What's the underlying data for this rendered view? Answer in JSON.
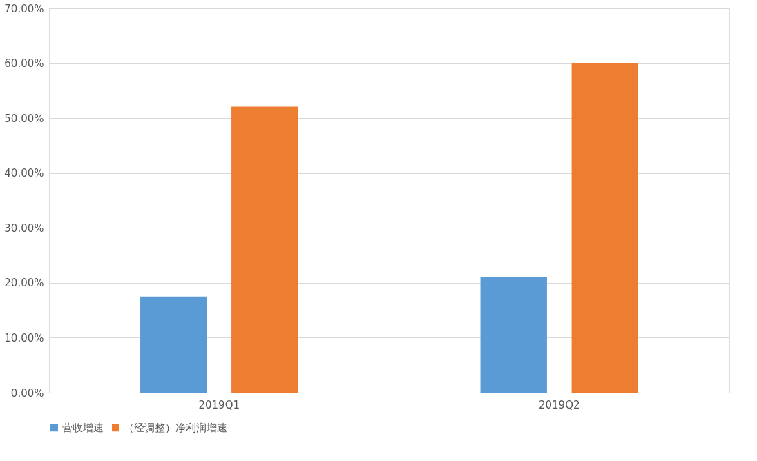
{
  "chart_data": {
    "type": "bar",
    "categories": [
      "2019Q1",
      "2019Q2"
    ],
    "series": [
      {
        "name": "营收增速",
        "color": "#5b9bd5",
        "values": [
          17.5,
          21.0
        ]
      },
      {
        "name": "（经调整）净利润增速",
        "color": "#ed7d31",
        "values": [
          52.1,
          60.0
        ]
      }
    ],
    "ylim": [
      0,
      70
    ],
    "yticks": [
      {
        "value": 0,
        "label": "0.00%"
      },
      {
        "value": 10,
        "label": "10.00%"
      },
      {
        "value": 20,
        "label": "20.00%"
      },
      {
        "value": 30,
        "label": "30.00%"
      },
      {
        "value": 40,
        "label": "40.00%"
      },
      {
        "value": 50,
        "label": "50.00%"
      },
      {
        "value": 60,
        "label": "60.00%"
      },
      {
        "value": 70,
        "label": "70.00%"
      }
    ],
    "grid": "y",
    "legend": "bottom"
  }
}
